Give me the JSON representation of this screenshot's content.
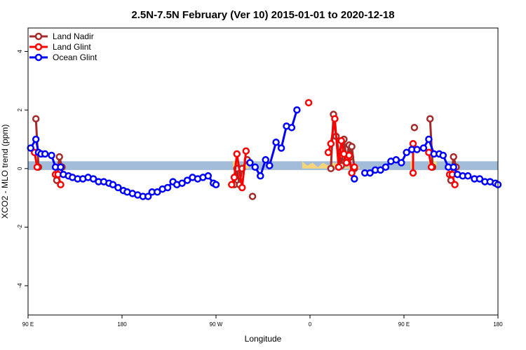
{
  "chart_data": {
    "type": "line",
    "title": "2.5N-7.5N February (Ver 10)   2015-01-01 to 2020-12-18",
    "xlabel": "Longitude",
    "ylabel": "XCO2 - MLO trend (ppm)",
    "xlim": [
      90,
      450
    ],
    "ylim": [
      -5,
      4.8
    ],
    "x_ticks": [
      {
        "value": 90,
        "label": "90 E"
      },
      {
        "value": 162,
        "label": "180"
      },
      {
        "value": 234,
        "label": "90 W"
      },
      {
        "value": 306,
        "label": "0"
      },
      {
        "value": 378,
        "label": "90 E"
      },
      {
        "value": 450,
        "label": "180"
      }
    ],
    "y_ticks": [
      {
        "value": -4,
        "label": "-4"
      },
      {
        "value": -2,
        "label": "-2"
      },
      {
        "value": 0,
        "label": "0"
      },
      {
        "value": 2,
        "label": "2"
      },
      {
        "value": 4,
        "label": "4"
      }
    ],
    "legend_position": "top-left",
    "band": {
      "color": "#a3bcd9",
      "y0": -0.05,
      "y1": 0.25
    },
    "land_fill": {
      "color": "#f6d47a",
      "segments": [
        [
          [
            247,
            0
          ],
          [
            247,
            0.25
          ],
          [
            250,
            0.25
          ],
          [
            253,
            0.05
          ],
          [
            256,
            0.25
          ],
          [
            259,
            0.25
          ],
          [
            259,
            0
          ]
        ],
        [
          [
            300,
            0
          ],
          [
            300,
            0.25
          ],
          [
            304,
            0.1
          ],
          [
            308,
            0.2
          ],
          [
            312,
            0.05
          ],
          [
            316,
            0.2
          ],
          [
            320,
            0.1
          ],
          [
            324,
            0.2
          ],
          [
            329,
            0.15
          ],
          [
            334,
            0.05
          ],
          [
            340,
            0.1
          ],
          [
            344,
            0.05
          ],
          [
            344,
            0
          ]
        ],
        [
          [
            383,
            0
          ],
          [
            383,
            0.25
          ],
          [
            386,
            0.25
          ],
          [
            386,
            0
          ]
        ],
        [
          [
            397,
            0
          ],
          [
            397,
            0.25
          ],
          [
            403,
            0.25
          ],
          [
            403,
            0
          ]
        ]
      ]
    },
    "series": [
      {
        "name": "Land Nadir",
        "color": "#a52a2a",
        "segments": [
          [
            [
              96,
              1.7
            ],
            [
              98,
              0.05
            ]
          ],
          [
            [
              112,
              -0.4
            ],
            [
              114,
              0.4
            ],
            [
              116,
              0.05
            ]
          ],
          [
            [
              248,
              -0.55
            ],
            [
              250,
              0
            ],
            [
              252,
              -0.55
            ],
            [
              254,
              0
            ],
            [
              258,
              0.3
            ]
          ],
          [
            [
              262,
              -0.95
            ]
          ],
          [
            [
              322,
              0
            ],
            [
              324,
              1.85
            ],
            [
              326,
              1.1
            ],
            [
              330,
              0.1
            ],
            [
              332,
              1.0
            ],
            [
              334,
              0.3
            ],
            [
              336,
              0.8
            ],
            [
              337,
              0.4
            ],
            [
              338,
              0.75
            ],
            [
              340,
              0
            ]
          ],
          [
            [
              386,
              1.4
            ]
          ],
          [
            [
              398,
              1.7
            ],
            [
              400,
              0.05
            ]
          ],
          [
            [
              414,
              -0.4
            ],
            [
              416,
              0.4
            ],
            [
              418,
              0.05
            ]
          ]
        ]
      },
      {
        "name": "Land Glint",
        "color": "#ff0000",
        "segments": [
          [
            [
              95,
              0.55
            ],
            [
              97,
              0.05
            ]
          ],
          [
            [
              111,
              -0.2
            ],
            [
              113,
              -0.2
            ],
            [
              115,
              -0.55
            ]
          ],
          [
            [
              246,
              -0.55
            ],
            [
              248,
              -0.3
            ],
            [
              250,
              0.5
            ],
            [
              254,
              -0.65
            ],
            [
              257,
              0.6
            ]
          ],
          [
            [
              305,
              2.25
            ]
          ],
          [
            [
              320,
              0.55
            ],
            [
              322,
              0.85
            ],
            [
              325,
              1.7
            ],
            [
              328,
              0.05
            ],
            [
              330,
              0.95
            ],
            [
              332,
              0.5
            ],
            [
              334,
              0.2
            ],
            [
              336,
              0.45
            ],
            [
              338,
              -0.15
            ],
            [
              340,
              0.05
            ]
          ],
          [
            [
              385,
              0.85
            ],
            [
              385,
              -0.15
            ]
          ],
          [
            [
              397,
              0.55
            ],
            [
              399,
              0.05
            ]
          ],
          [
            [
              413,
              -0.2
            ],
            [
              415,
              -0.2
            ],
            [
              417,
              -0.55
            ]
          ]
        ]
      },
      {
        "name": "Ocean Glint",
        "color": "#0000ff",
        "segments": [
          [
            [
              92,
              0.7
            ],
            [
              96,
              1.0
            ],
            [
              98,
              0.55
            ],
            [
              100,
              0.5
            ],
            [
              103,
              0.5
            ],
            [
              108,
              0.45
            ],
            [
              111,
              0.05
            ],
            [
              115,
              0.05
            ],
            [
              117,
              -0.2
            ],
            [
              121,
              -0.25
            ],
            [
              124,
              -0.3
            ],
            [
              128,
              -0.35
            ],
            [
              132,
              -0.35
            ],
            [
              136,
              -0.3
            ],
            [
              140,
              -0.35
            ],
            [
              144,
              -0.45
            ],
            [
              148,
              -0.45
            ],
            [
              152,
              -0.5
            ],
            [
              155,
              -0.55
            ],
            [
              159,
              -0.65
            ],
            [
              163,
              -0.75
            ],
            [
              166,
              -0.8
            ],
            [
              170,
              -0.85
            ],
            [
              174,
              -0.9
            ],
            [
              178,
              -0.95
            ],
            [
              182,
              -0.95
            ],
            [
              185,
              -0.8
            ],
            [
              189,
              -0.8
            ],
            [
              193,
              -0.7
            ],
            [
              197,
              -0.65
            ],
            [
              201,
              -0.45
            ],
            [
              204,
              -0.55
            ],
            [
              208,
              -0.5
            ],
            [
              212,
              -0.4
            ],
            [
              216,
              -0.3
            ],
            [
              220,
              -0.35
            ],
            [
              224,
              -0.3
            ],
            [
              228,
              -0.25
            ],
            [
              232,
              -0.5
            ],
            [
              234,
              -0.55
            ]
          ],
          [
            [
              260,
              0.2
            ],
            [
              264,
              0.05
            ],
            [
              268,
              -0.25
            ],
            [
              272,
              0.3
            ],
            [
              275,
              0.1
            ],
            [
              280,
              0.9
            ],
            [
              284,
              0.7
            ],
            [
              288,
              1.45
            ],
            [
              292,
              1.4
            ],
            [
              296,
              2.0
            ]
          ],
          [
            [
              340,
              -0.35
            ]
          ],
          [
            [
              348,
              -0.15
            ],
            [
              352,
              -0.15
            ],
            [
              356,
              -0.05
            ],
            [
              360,
              -0.05
            ],
            [
              364,
              0.05
            ],
            [
              368,
              0.25
            ],
            [
              372,
              0.3
            ],
            [
              376,
              0.2
            ],
            [
              380,
              0.55
            ],
            [
              384,
              0.65
            ],
            [
              388,
              0.65
            ],
            [
              393,
              0.7
            ],
            [
              397,
              1.0
            ],
            [
              401,
              0.5
            ],
            [
              405,
              0.5
            ],
            [
              408,
              0.45
            ],
            [
              412,
              0.05
            ],
            [
              416,
              0.05
            ],
            [
              419,
              -0.2
            ],
            [
              423,
              -0.25
            ],
            [
              427,
              -0.25
            ],
            [
              432,
              -0.35
            ],
            [
              436,
              -0.35
            ],
            [
              440,
              -0.45
            ],
            [
              444,
              -0.45
            ],
            [
              448,
              -0.5
            ],
            [
              450,
              -0.55
            ]
          ]
        ]
      }
    ]
  }
}
